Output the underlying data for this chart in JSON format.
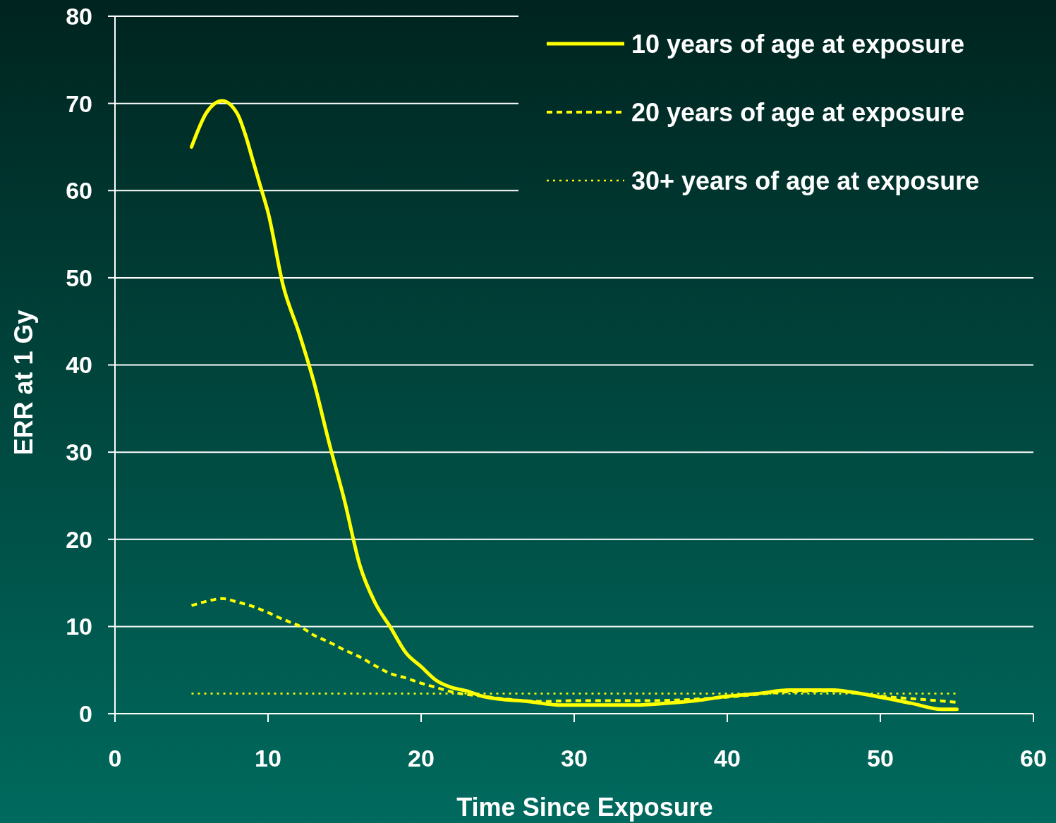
{
  "chart_data": {
    "type": "line",
    "xlabel": "Time Since Exposure",
    "ylabel": "ERR at 1 Gy",
    "xlim": [
      0,
      60
    ],
    "xticks": [
      0,
      10,
      20,
      30,
      40,
      50,
      60
    ],
    "ylim": [
      0,
      80
    ],
    "yticks": [
      0,
      10,
      20,
      30,
      40,
      50,
      60,
      70,
      80
    ],
    "grid": "y",
    "legend": "top right",
    "marker": "none",
    "series": [
      {
        "name": "10 years of age at exposure",
        "color": "#ffff00",
        "line_style": "solid",
        "x": [
          5,
          6,
          7,
          8,
          8.5,
          9,
          9.5,
          10,
          11,
          12,
          13,
          14,
          15,
          16,
          17,
          18,
          19,
          20,
          21,
          22,
          23,
          24,
          25,
          27,
          29,
          33,
          34,
          36,
          38,
          40,
          42,
          44,
          47,
          48,
          50,
          52,
          54,
          55
        ],
        "values": [
          65,
          69,
          70.3,
          68.8,
          66.5,
          63.5,
          60.5,
          57.5,
          49,
          43.8,
          38,
          31,
          24.4,
          17,
          12.7,
          9.9,
          7,
          5.4,
          3.8,
          3,
          2.6,
          2,
          1.7,
          1.4,
          1,
          1,
          1,
          1.2,
          1.5,
          2,
          2.3,
          2.7,
          2.7,
          2.5,
          1.9,
          1.2,
          0.5,
          0.5
        ]
      },
      {
        "name": "20 years of age at exposure",
        "color": "#ffff00",
        "line_style": "dashed",
        "x": [
          5,
          6,
          7,
          8,
          9,
          10,
          11,
          12,
          13,
          14,
          15,
          16,
          17,
          18,
          19,
          20,
          21,
          22,
          24,
          26,
          28,
          30,
          35,
          40,
          44,
          47,
          50,
          53,
          55
        ],
        "values": [
          12.4,
          12.9,
          13.2,
          12.8,
          12.3,
          11.6,
          10.8,
          10.1,
          9,
          8.2,
          7.3,
          6.5,
          5.5,
          4.6,
          4.1,
          3.5,
          3,
          2.5,
          2,
          1.6,
          1.4,
          1.5,
          1.5,
          1.9,
          2.5,
          2.6,
          2,
          1.6,
          1.3
        ]
      },
      {
        "name": "30+ years of age at exposure",
        "color": "#ffff00",
        "line_style": "dotted",
        "x": [
          5,
          55
        ],
        "values": [
          2.3,
          2.3
        ]
      }
    ]
  }
}
